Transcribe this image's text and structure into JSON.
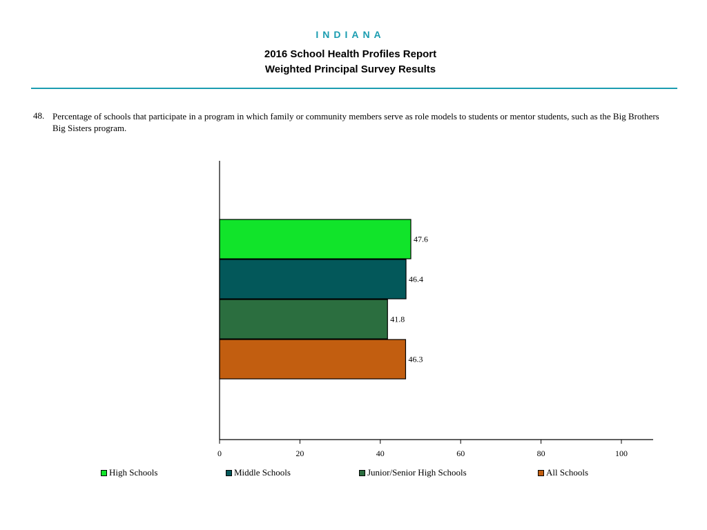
{
  "header": {
    "state": "INDIANA",
    "title_line1": "2016 School Health Profiles Report",
    "title_line2": "Weighted Principal Survey Results"
  },
  "question": {
    "number": "48.",
    "text": "Percentage of schools that participate in a program in which family or community members serve as role models to students or mentor students, such as the Big Brothers Big Sisters program."
  },
  "chart_data": {
    "type": "bar",
    "orientation": "horizontal",
    "categories": [
      "High Schools",
      "Middle Schools",
      "Junior/Senior High Schools",
      "All Schools"
    ],
    "values": [
      47.6,
      46.4,
      41.8,
      46.3
    ],
    "value_labels": [
      "47.6",
      "46.4",
      "41.8",
      "46.3"
    ],
    "colors": [
      "#11e42a",
      "#03585a",
      "#2b6e3f",
      "#c25e10"
    ],
    "xlim": [
      0,
      100
    ],
    "x_ticks": [
      0,
      20,
      40,
      60,
      80,
      100
    ],
    "legend_position": "bottom",
    "grid": false
  },
  "legend": [
    {
      "label": "High Schools",
      "color": "#11e42a"
    },
    {
      "label": "Middle Schools",
      "color": "#03585a"
    },
    {
      "label": "Junior/Senior High Schools",
      "color": "#2b6e3f"
    },
    {
      "label": "All Schools",
      "color": "#c25e10"
    }
  ]
}
